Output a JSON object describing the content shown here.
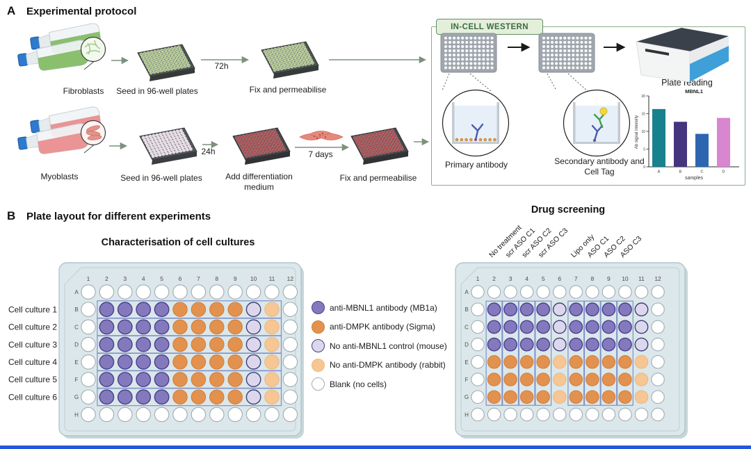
{
  "panel_a": {
    "label": "A",
    "title": "Experimental protocol",
    "fibroblast_row": {
      "flask_label": "Fibroblasts",
      "seed_label": "Seed in 96-well plates",
      "incubation": "72h",
      "fix_label": "Fix and permeabilise"
    },
    "myoblast_row": {
      "flask_label": "Myoblasts",
      "seed_label": "Seed in 96-well plates",
      "incubation": "24h",
      "diff_label": "Add differentiation medium",
      "diff_time": "7 days",
      "fix_label": "Fix and permeabilise"
    },
    "icw": {
      "title": "IN-CELL WESTERN",
      "primary_label": "Primary antibody",
      "secondary_label": "Secondary antibody and Cell Tag",
      "reader_label": "Plate reading"
    }
  },
  "chart_data": {
    "type": "bar",
    "title": "MBNL1",
    "categories": [
      "A",
      "B",
      "C",
      "D"
    ],
    "values": [
      16.3,
      12.7,
      9.3,
      13.8
    ],
    "colors": [
      "#17818e",
      "#45357e",
      "#2d66b0",
      "#d886cf"
    ],
    "xlabel": "samples",
    "ylabel": "Ab signal intensity",
    "ylim": [
      0,
      20
    ],
    "yticks": [
      0,
      5,
      10,
      15,
      20
    ],
    "grid": false,
    "legend_position": "none"
  },
  "panel_b": {
    "label": "B",
    "title": "Plate layout for different experiments",
    "well_colors": {
      "mbnl1": {
        "fill": "#8579bd",
        "stroke": "#46408d"
      },
      "dmpk": {
        "fill": "#e2924e",
        "stroke": "#d07f3a"
      },
      "no_mbnl1": {
        "fill": "#ddd7ee",
        "stroke": "#3d4078"
      },
      "no_dmpk": {
        "fill": "#f6c795",
        "stroke": "#ecb87e"
      },
      "blank": {
        "fill": "#ffffff",
        "stroke": "#a0acb2"
      }
    },
    "legend": [
      {
        "type": "mbnl1",
        "label": "anti-MBNL1 antibody (MB1a)"
      },
      {
        "type": "dmpk",
        "label": "anti-DMPK antibody (Sigma)"
      },
      {
        "type": "no_mbnl1",
        "label": "No anti-MBNL1 control (mouse)"
      },
      {
        "type": "no_dmpk",
        "label": "No anti-DMPK antibody (rabbit)"
      },
      {
        "type": "blank",
        "label": "Blank (no cells)"
      }
    ],
    "plates": {
      "characterisation": {
        "key": "characterisation",
        "title": "Characterisation of cell cultures",
        "col_numbers": [
          "1",
          "2",
          "3",
          "4",
          "5",
          "6",
          "7",
          "8",
          "9",
          "10",
          "11",
          "12"
        ],
        "row_letters": [
          "A",
          "B",
          "C",
          "D",
          "E",
          "F",
          "G",
          "H"
        ],
        "row_labels": [
          "Cell culture 1",
          "Cell culture 2",
          "Cell culture 3",
          "Cell culture 4",
          "Cell culture 5",
          "Cell culture 6"
        ],
        "layout": {
          "A": "............",
          "B": ".MMMMDDDDmd.",
          "C": ".MMMMDDDDmd.",
          "D": ".MMMMDDDDmd.",
          "E": ".MMMMDDDDmd.",
          "F": ".MMMMDDDDmd.",
          "G": ".MMMMDDDDmd.",
          "H": "............"
        },
        "highlight": {
          "mode": "rows",
          "letters": [
            "B",
            "G"
          ],
          "cols": [
            2,
            11
          ]
        }
      },
      "drug_screening": {
        "key": "drug-screening",
        "title": "Drug screening",
        "col_numbers": [
          "1",
          "2",
          "3",
          "4",
          "5",
          "6",
          "7",
          "8",
          "9",
          "10",
          "11",
          "12"
        ],
        "row_letters": [
          "A",
          "B",
          "C",
          "D",
          "E",
          "F",
          "G",
          "H"
        ],
        "col_labels": [
          {
            "col": 2,
            "label": "No treatment"
          },
          {
            "col": 3,
            "label": "scr ASO C1"
          },
          {
            "col": 4,
            "label": "scr ASO C2"
          },
          {
            "col": 5,
            "label": "scr ASO C3"
          },
          {
            "col": 7,
            "label": "Lipo only"
          },
          {
            "col": 8,
            "label": "ASO C1"
          },
          {
            "col": 9,
            "label": "ASO C2"
          },
          {
            "col": 10,
            "label": "ASO C3"
          }
        ],
        "layout": {
          "A": "............",
          "B": ".MMMMmMMMMm.",
          "C": ".MMMMmMMMMm.",
          "D": ".MMMMmMMMMm.",
          "E": ".DDDDdDDDDd.",
          "F": ".DDDDdDDDDd.",
          "G": ".DDDDdDDDDd.",
          "H": "............"
        },
        "highlight": {
          "mode": "cols",
          "cols": [
            2,
            3,
            4,
            5,
            7,
            8,
            9,
            10
          ],
          "letters": [
            "B",
            "G"
          ]
        }
      }
    }
  }
}
